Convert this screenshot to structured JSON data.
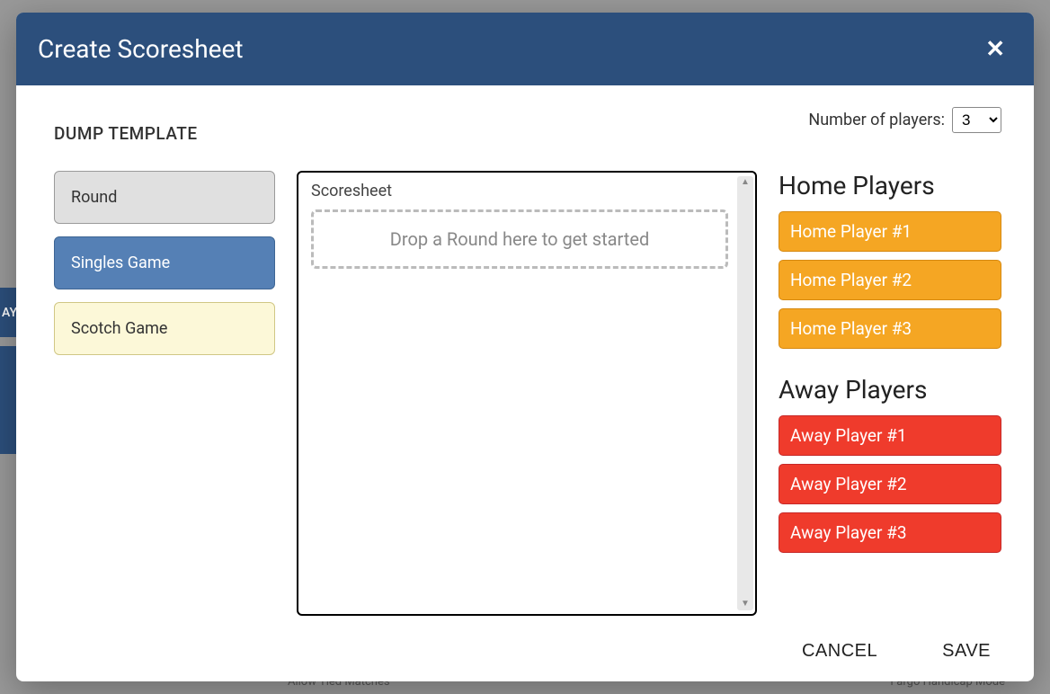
{
  "modal": {
    "title": "Create Scoresheet",
    "close_glyph": "✕"
  },
  "toolbar": {
    "dump_template_label": "DUMP TEMPLATE",
    "num_players_label": "Number of players:",
    "num_players_value": "3"
  },
  "game_types": {
    "round": "Round",
    "singles": "Singles Game",
    "scotch": "Scotch Game"
  },
  "scoresheet": {
    "label": "Scoresheet",
    "dropzone_text": "Drop a Round here to get started"
  },
  "players": {
    "home_heading": "Home Players",
    "away_heading": "Away Players",
    "home": [
      "Home Player #1",
      "Home Player #2",
      "Home Player #3"
    ],
    "away": [
      "Away Player #1",
      "Away Player #2",
      "Away Player #3"
    ]
  },
  "footer": {
    "cancel": "CANCEL",
    "save": "SAVE"
  },
  "background": {
    "left_btn": "AY",
    "bottom_left": "Allow Tied Matches",
    "bottom_right": "Fargo Handicap Mode"
  },
  "colors": {
    "header_bg": "#2c4f7c",
    "round_bg": "#e0e0e0",
    "singles_bg": "#5580b5",
    "scotch_bg": "#fcf8d8",
    "home_bg": "#f5a623",
    "away_bg": "#ef3b2c"
  }
}
